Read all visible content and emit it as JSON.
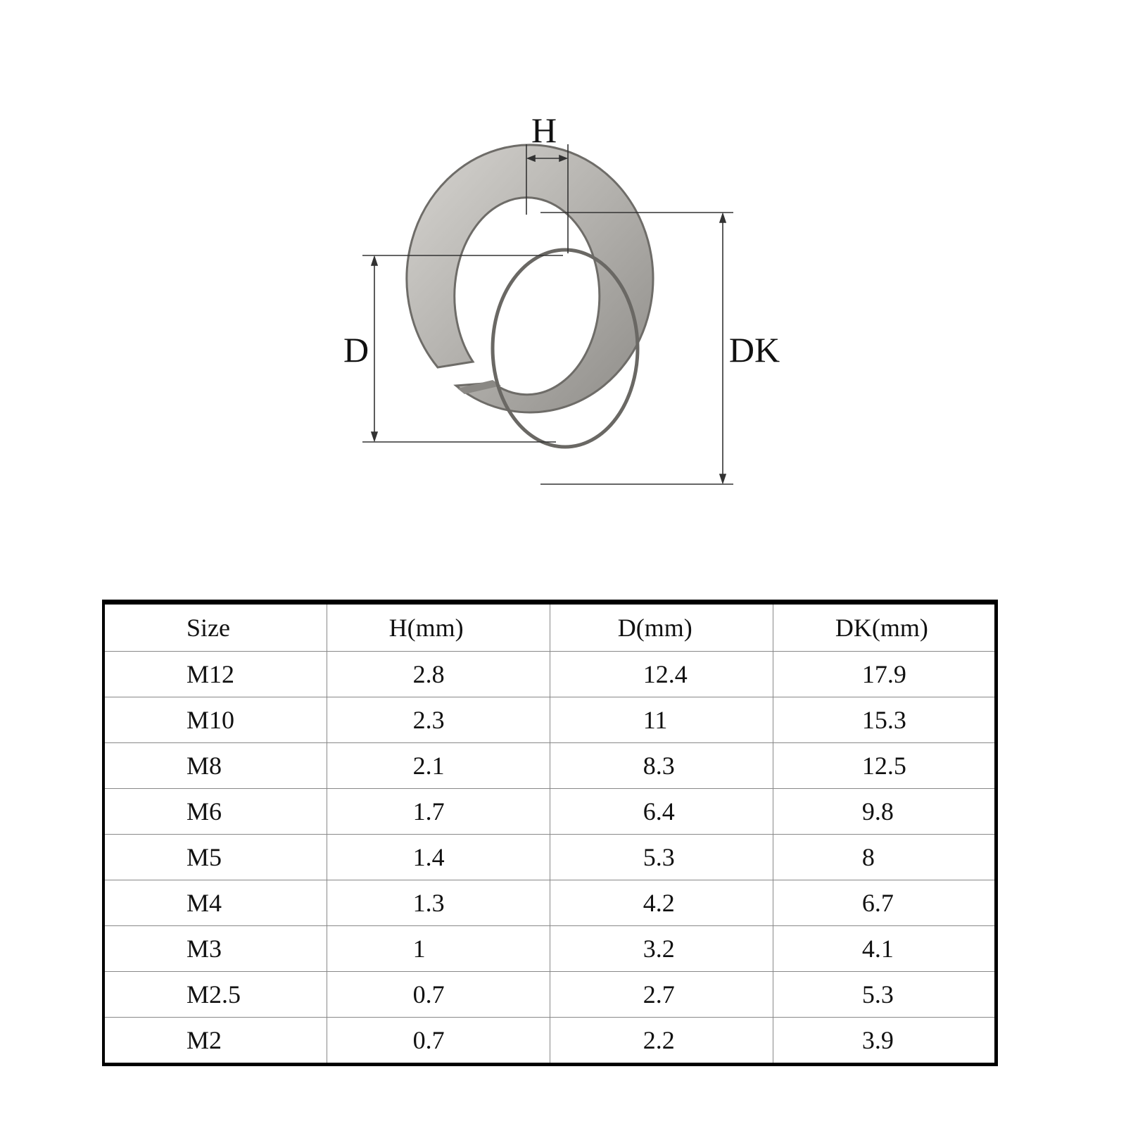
{
  "diagram": {
    "labels": {
      "h": "H",
      "d": "D",
      "dk": "DK"
    },
    "colors": {
      "metal": "#b8b6b2",
      "metal_dark": "#7d7b77",
      "line": "#333333"
    }
  },
  "table": {
    "headers": [
      "Size",
      "H(mm)",
      "D(mm)",
      "DK(mm)"
    ],
    "rows": [
      [
        "M12",
        "2.8",
        "12.4",
        "17.9"
      ],
      [
        "M10",
        "2.3",
        "11",
        "15.3"
      ],
      [
        "M8",
        "2.1",
        "8.3",
        "12.5"
      ],
      [
        "M6",
        "1.7",
        "6.4",
        "9.8"
      ],
      [
        "M5",
        "1.4",
        "5.3",
        "8"
      ],
      [
        "M4",
        "1.3",
        "4.2",
        "6.7"
      ],
      [
        "M3",
        "1",
        "3.2",
        "4.1"
      ],
      [
        "M2.5",
        "0.7",
        "2.7",
        "5.3"
      ],
      [
        "M2",
        "0.7",
        "2.2",
        "3.9"
      ]
    ]
  }
}
